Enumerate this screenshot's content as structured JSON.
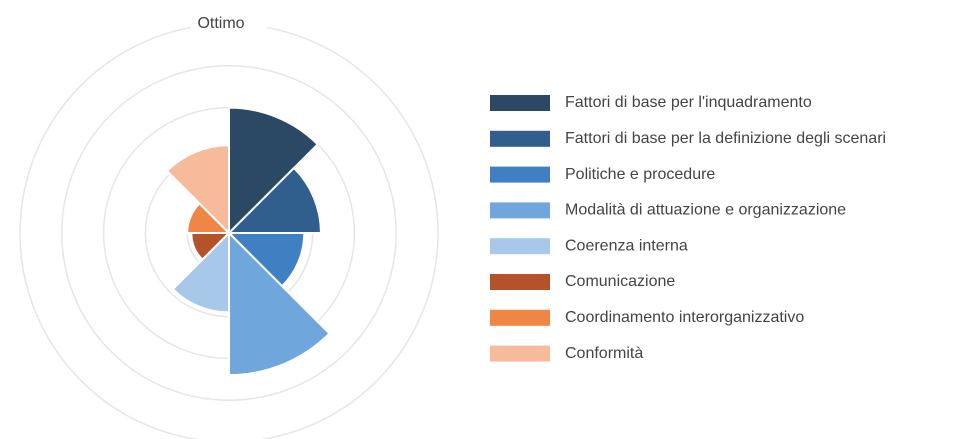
{
  "chart_data": {
    "type": "polarArea",
    "categories": [
      "Fattori di base per l'inquadramento",
      "Fattori di base per la definizione degli scenari",
      "Politiche e procedure",
      "Modalità di attuazione e organizzazione",
      "Coerenza interna",
      "Comunicazione",
      "Coordinamento interorganizzativo",
      "Conformità"
    ],
    "values": [
      3.0,
      2.2,
      1.8,
      3.4,
      1.9,
      0.9,
      1.0,
      2.1
    ],
    "colors": [
      "#2b4865",
      "#305f8d",
      "#3f80c3",
      "#6fa7dc",
      "#a8c8ea",
      "#b4532a",
      "#ef8645",
      "#f7bb9b"
    ],
    "rlim": [
      0,
      5
    ],
    "rticks": [
      1,
      2,
      3,
      4,
      {
        "value": 5,
        "label": "Ottimo"
      }
    ],
    "grid": true,
    "legend": "right"
  }
}
